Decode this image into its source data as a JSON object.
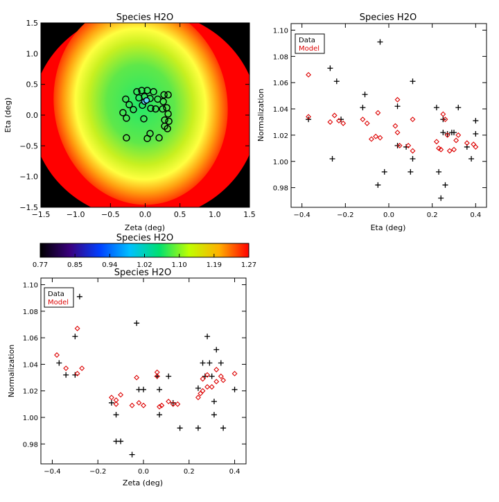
{
  "charts": [
    {
      "type": "heatmap",
      "title": "Species H2O",
      "xlabel": "Zeta (deg)",
      "ylabel": "Eta (deg)",
      "xlim": [
        -1.5,
        1.5
      ],
      "ylim": [
        -1.5,
        1.5
      ],
      "xticks": [
        "−1.5",
        "−1.0",
        "−0.5",
        "0.0",
        "0.5",
        "1.0",
        "1.5"
      ],
      "yticks": [
        "−1.5",
        "−1.0",
        "−0.5",
        "0.0",
        "0.5",
        "1.0",
        "1.5"
      ],
      "colors": {
        "outside": "#000000",
        "high": "#ff0000",
        "low": "#00e060"
      },
      "markers": [
        {
          "x": -0.12,
          "y": 0.38
        },
        {
          "x": -0.05,
          "y": 0.4
        },
        {
          "x": 0.03,
          "y": 0.4
        },
        {
          "x": 0.12,
          "y": 0.38
        },
        {
          "x": 0.27,
          "y": 0.33
        },
        {
          "x": 0.33,
          "y": 0.33
        },
        {
          "x": -0.09,
          "y": 0.28
        },
        {
          "x": -0.01,
          "y": 0.3
        },
        {
          "x": 0.07,
          "y": 0.27
        },
        {
          "x": 0.18,
          "y": 0.26
        },
        {
          "x": 0.26,
          "y": 0.22
        },
        {
          "x": -0.28,
          "y": 0.26
        },
        {
          "x": -0.23,
          "y": 0.17
        },
        {
          "x": -0.17,
          "y": 0.09
        },
        {
          "x": -0.04,
          "y": 0.16
        },
        {
          "x": 0.08,
          "y": 0.11
        },
        {
          "x": 0.15,
          "y": 0.1
        },
        {
          "x": 0.25,
          "y": 0.1
        },
        {
          "x": 0.31,
          "y": 0.12
        },
        {
          "x": -0.32,
          "y": 0.04
        },
        {
          "x": 0.33,
          "y": 0.02
        },
        {
          "x": -0.27,
          "y": -0.05
        },
        {
          "x": -0.02,
          "y": -0.06
        },
        {
          "x": 0.28,
          "y": -0.08
        },
        {
          "x": 0.34,
          "y": -0.1
        },
        {
          "x": 0.28,
          "y": -0.18
        },
        {
          "x": 0.07,
          "y": -0.3
        },
        {
          "x": -0.27,
          "y": -0.37
        },
        {
          "x": 0.03,
          "y": -0.38
        },
        {
          "x": 0.2,
          "y": -0.37
        },
        {
          "x": 0.32,
          "y": -0.22
        }
      ],
      "highlight_markers": [
        {
          "x": -0.01,
          "y": 0.22
        },
        {
          "x": 0.02,
          "y": 0.24
        }
      ]
    },
    {
      "type": "scatter",
      "title": "Species H2O",
      "xlabel": "Eta (deg)",
      "ylabel": "Normalization",
      "xlim": [
        -0.45,
        0.45
      ],
      "ylim": [
        0.965,
        1.105
      ],
      "xticks": [
        -0.4,
        -0.2,
        0.0,
        0.2,
        0.4
      ],
      "xtick_labels": [
        "−0.4",
        "−0.2",
        "0.0",
        "0.2",
        "0.4"
      ],
      "yticks": [
        0.98,
        1.0,
        1.02,
        1.04,
        1.06,
        1.08,
        1.1
      ],
      "ytick_labels": [
        "0.98",
        "1.00",
        "1.02",
        "1.04",
        "1.06",
        "1.08",
        "1.10"
      ],
      "legend": {
        "position": "top-left",
        "entries": [
          "Data",
          "Model"
        ]
      },
      "series": [
        {
          "name": "Data",
          "marker": "plus",
          "color": "#000000",
          "points": [
            [
              -0.37,
              1.032
            ],
            [
              -0.27,
              1.071
            ],
            [
              -0.24,
              1.061
            ],
            [
              -0.26,
              1.002
            ],
            [
              -0.22,
              1.032
            ],
            [
              -0.12,
              1.041
            ],
            [
              -0.11,
              1.051
            ],
            [
              -0.04,
              1.091
            ],
            [
              -0.05,
              0.982
            ],
            [
              -0.02,
              0.992
            ],
            [
              0.04,
              1.042
            ],
            [
              0.04,
              1.012
            ],
            [
              0.08,
              1.011
            ],
            [
              0.1,
              0.992
            ],
            [
              0.11,
              1.061
            ],
            [
              0.11,
              1.002
            ],
            [
              0.22,
              1.041
            ],
            [
              0.23,
              0.992
            ],
            [
              0.24,
              0.972
            ],
            [
              0.25,
              1.032
            ],
            [
              0.25,
              1.022
            ],
            [
              0.26,
              0.982
            ],
            [
              0.27,
              1.021
            ],
            [
              0.29,
              1.022
            ],
            [
              0.3,
              1.022
            ],
            [
              0.32,
              1.041
            ],
            [
              0.36,
              1.011
            ],
            [
              0.38,
              1.002
            ],
            [
              0.4,
              1.031
            ],
            [
              0.4,
              1.021
            ]
          ]
        },
        {
          "name": "Model",
          "marker": "diamond",
          "color": "#dd0000",
          "points": [
            [
              -0.37,
              1.066
            ],
            [
              -0.37,
              1.034
            ],
            [
              -0.27,
              1.03
            ],
            [
              -0.25,
              1.035
            ],
            [
              -0.23,
              1.031
            ],
            [
              -0.21,
              1.029
            ],
            [
              -0.12,
              1.032
            ],
            [
              -0.1,
              1.029
            ],
            [
              -0.08,
              1.017
            ],
            [
              -0.06,
              1.019
            ],
            [
              -0.05,
              1.037
            ],
            [
              -0.04,
              1.018
            ],
            [
              0.03,
              1.027
            ],
            [
              0.04,
              1.047
            ],
            [
              0.04,
              1.022
            ],
            [
              0.05,
              1.012
            ],
            [
              0.09,
              1.012
            ],
            [
              0.11,
              1.008
            ],
            [
              0.11,
              1.032
            ],
            [
              0.22,
              1.015
            ],
            [
              0.23,
              1.01
            ],
            [
              0.24,
              1.009
            ],
            [
              0.25,
              1.036
            ],
            [
              0.26,
              1.032
            ],
            [
              0.27,
              1.02
            ],
            [
              0.28,
              1.008
            ],
            [
              0.3,
              1.009
            ],
            [
              0.31,
              1.016
            ],
            [
              0.32,
              1.02
            ],
            [
              0.36,
              1.014
            ],
            [
              0.39,
              1.013
            ],
            [
              0.4,
              1.011
            ]
          ]
        }
      ]
    },
    {
      "type": "colorbar",
      "title": "Species H2O",
      "tick_labels": [
        "0.77",
        "0.85",
        "0.94",
        "1.02",
        "1.10",
        "1.19",
        "1.27"
      ],
      "range": [
        0.77,
        1.27
      ],
      "stops": [
        "#000000",
        "#3a007e",
        "#0040ff",
        "#00c0ff",
        "#00e070",
        "#c0ff00",
        "#ffb000",
        "#ff0000"
      ]
    },
    {
      "type": "scatter",
      "title": "Species H2O",
      "xlabel": "Zeta (deg)",
      "ylabel": "Normalization",
      "xlim": [
        -0.45,
        0.45
      ],
      "ylim": [
        0.965,
        1.105
      ],
      "xticks": [
        -0.4,
        -0.2,
        0.0,
        0.2,
        0.4
      ],
      "xtick_labels": [
        "−0.4",
        "−0.2",
        "0.0",
        "0.2",
        "0.4"
      ],
      "yticks": [
        0.98,
        1.0,
        1.02,
        1.04,
        1.06,
        1.08,
        1.1
      ],
      "ytick_labels": [
        "0.98",
        "1.00",
        "1.02",
        "1.04",
        "1.06",
        "1.08",
        "1.10"
      ],
      "legend": {
        "position": "top-left",
        "entries": [
          "Data",
          "Model"
        ]
      },
      "series": [
        {
          "name": "Data",
          "marker": "plus",
          "color": "#000000",
          "points": [
            [
              -0.37,
              1.041
            ],
            [
              -0.34,
              1.032
            ],
            [
              -0.3,
              1.032
            ],
            [
              -0.3,
              1.061
            ],
            [
              -0.28,
              1.091
            ],
            [
              -0.14,
              1.011
            ],
            [
              -0.12,
              1.002
            ],
            [
              -0.12,
              0.982
            ],
            [
              -0.1,
              0.982
            ],
            [
              -0.05,
              0.972
            ],
            [
              -0.03,
              1.071
            ],
            [
              -0.02,
              1.021
            ],
            [
              0.0,
              1.021
            ],
            [
              0.06,
              1.031
            ],
            [
              0.07,
              1.002
            ],
            [
              0.07,
              1.021
            ],
            [
              0.11,
              1.031
            ],
            [
              0.13,
              1.011
            ],
            [
              0.16,
              0.992
            ],
            [
              0.24,
              0.992
            ],
            [
              0.24,
              1.022
            ],
            [
              0.26,
              1.041
            ],
            [
              0.27,
              1.031
            ],
            [
              0.28,
              1.061
            ],
            [
              0.29,
              1.041
            ],
            [
              0.3,
              1.031
            ],
            [
              0.31,
              1.012
            ],
            [
              0.31,
              1.002
            ],
            [
              0.32,
              1.051
            ],
            [
              0.34,
              1.041
            ],
            [
              0.35,
              0.992
            ],
            [
              0.4,
              1.021
            ]
          ]
        },
        {
          "name": "Model",
          "marker": "diamond",
          "color": "#dd0000",
          "points": [
            [
              -0.38,
              1.047
            ],
            [
              -0.34,
              1.037
            ],
            [
              -0.29,
              1.067
            ],
            [
              -0.29,
              1.033
            ],
            [
              -0.27,
              1.037
            ],
            [
              -0.14,
              1.015
            ],
            [
              -0.12,
              1.013
            ],
            [
              -0.12,
              1.01
            ],
            [
              -0.1,
              1.017
            ],
            [
              -0.05,
              1.009
            ],
            [
              -0.03,
              1.03
            ],
            [
              -0.02,
              1.011
            ],
            [
              0.0,
              1.009
            ],
            [
              0.06,
              1.034
            ],
            [
              0.06,
              1.031
            ],
            [
              0.07,
              1.008
            ],
            [
              0.08,
              1.009
            ],
            [
              0.11,
              1.012
            ],
            [
              0.13,
              1.01
            ],
            [
              0.15,
              1.01
            ],
            [
              0.24,
              1.015
            ],
            [
              0.25,
              1.018
            ],
            [
              0.26,
              1.02
            ],
            [
              0.26,
              1.029
            ],
            [
              0.28,
              1.023
            ],
            [
              0.28,
              1.032
            ],
            [
              0.3,
              1.023
            ],
            [
              0.32,
              1.036
            ],
            [
              0.32,
              1.027
            ],
            [
              0.34,
              1.031
            ],
            [
              0.35,
              1.028
            ],
            [
              0.4,
              1.033
            ]
          ]
        }
      ]
    }
  ]
}
